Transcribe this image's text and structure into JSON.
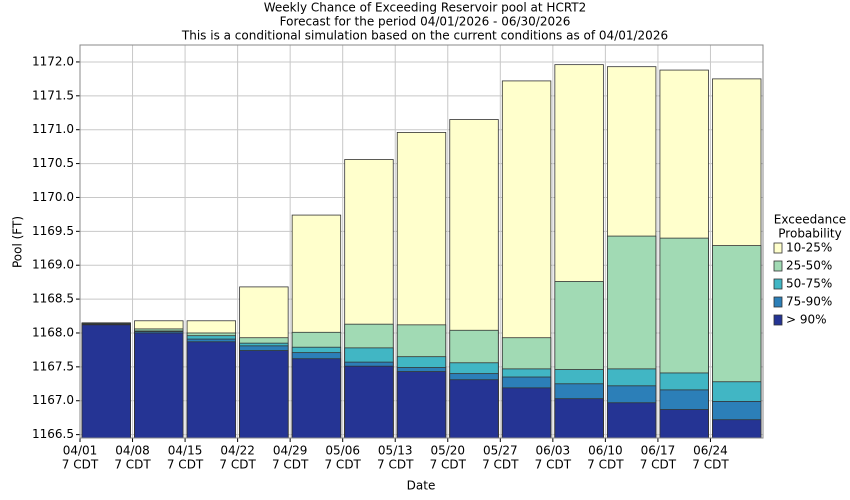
{
  "chart_data": {
    "type": "bar",
    "title": "Weekly Chance of Exceeding Reservoir pool at HCRT2",
    "subtitle": [
      "Forecast for the period 04/01/2026 - 06/30/2026",
      "This is a conditional simulation based on the current conditions as of 04/01/2026"
    ],
    "x_label": "Date",
    "y_label": "Pool (FT)",
    "legend_title": [
      "Exceedance",
      "Probability"
    ],
    "legend_position": "right",
    "grid": true,
    "categories": [
      "04/01",
      "04/08",
      "04/15",
      "04/22",
      "04/29",
      "05/06",
      "05/13",
      "05/20",
      "05/27",
      "06/03",
      "06/10",
      "06/17",
      "06/24"
    ],
    "category_sublabels": [
      "7 CDT",
      "7 CDT",
      "7 CDT",
      "7 CDT",
      "7 CDT",
      "7 CDT",
      "7 CDT",
      "7 CDT",
      "7 CDT",
      "7 CDT",
      "7 CDT",
      "7 CDT",
      "7 CDT"
    ],
    "ylim": [
      1166.45,
      1172.25
    ],
    "yticks": [
      1166.5,
      {
        "value": 1167,
        "label": "1167.0"
      },
      1167.5,
      {
        "value": 1168,
        "label": "1168.0"
      },
      1168.5,
      {
        "value": 1169,
        "label": "1169.0"
      },
      1169.5,
      {
        "value": 1170,
        "label": "1170.0"
      },
      1170.5,
      {
        "value": 1171,
        "label": "1171.0"
      },
      1171.5,
      {
        "value": 1172,
        "label": "1172.0"
      }
    ],
    "series": [
      {
        "name": "10-25%",
        "color": "#ffffcc",
        "values": [
          1168.15,
          1168.18,
          1168.18,
          1168.68,
          1169.74,
          1170.56,
          1170.96,
          1171.15,
          1171.72,
          1171.96,
          1171.93,
          1171.88,
          1171.75
        ]
      },
      {
        "name": "25-50%",
        "color": "#a1dab4",
        "values": [
          1168.14,
          1168.06,
          1168.0,
          1167.93,
          1168.01,
          1168.13,
          1168.12,
          1168.04,
          1167.93,
          1168.76,
          1169.43,
          1169.4,
          1169.29
        ]
      },
      {
        "name": "50-75%",
        "color": "#41b6c4",
        "values": [
          1168.14,
          1168.03,
          1167.96,
          1167.85,
          1167.79,
          1167.78,
          1167.65,
          1167.56,
          1167.47,
          1167.46,
          1167.47,
          1167.41,
          1167.28
        ]
      },
      {
        "name": "75-90%",
        "color": "#2c7fb8",
        "values": [
          1168.13,
          1168.02,
          1167.91,
          1167.81,
          1167.71,
          1167.57,
          1167.49,
          1167.4,
          1167.35,
          1167.25,
          1167.22,
          1167.16,
          1166.99
        ]
      },
      {
        "name": "> 90%",
        "color": "#253494",
        "values": [
          1168.12,
          1168.0,
          1167.87,
          1167.74,
          1167.62,
          1167.51,
          1167.43,
          1167.31,
          1167.19,
          1167.03,
          1166.97,
          1166.87,
          1166.72
        ]
      }
    ]
  }
}
